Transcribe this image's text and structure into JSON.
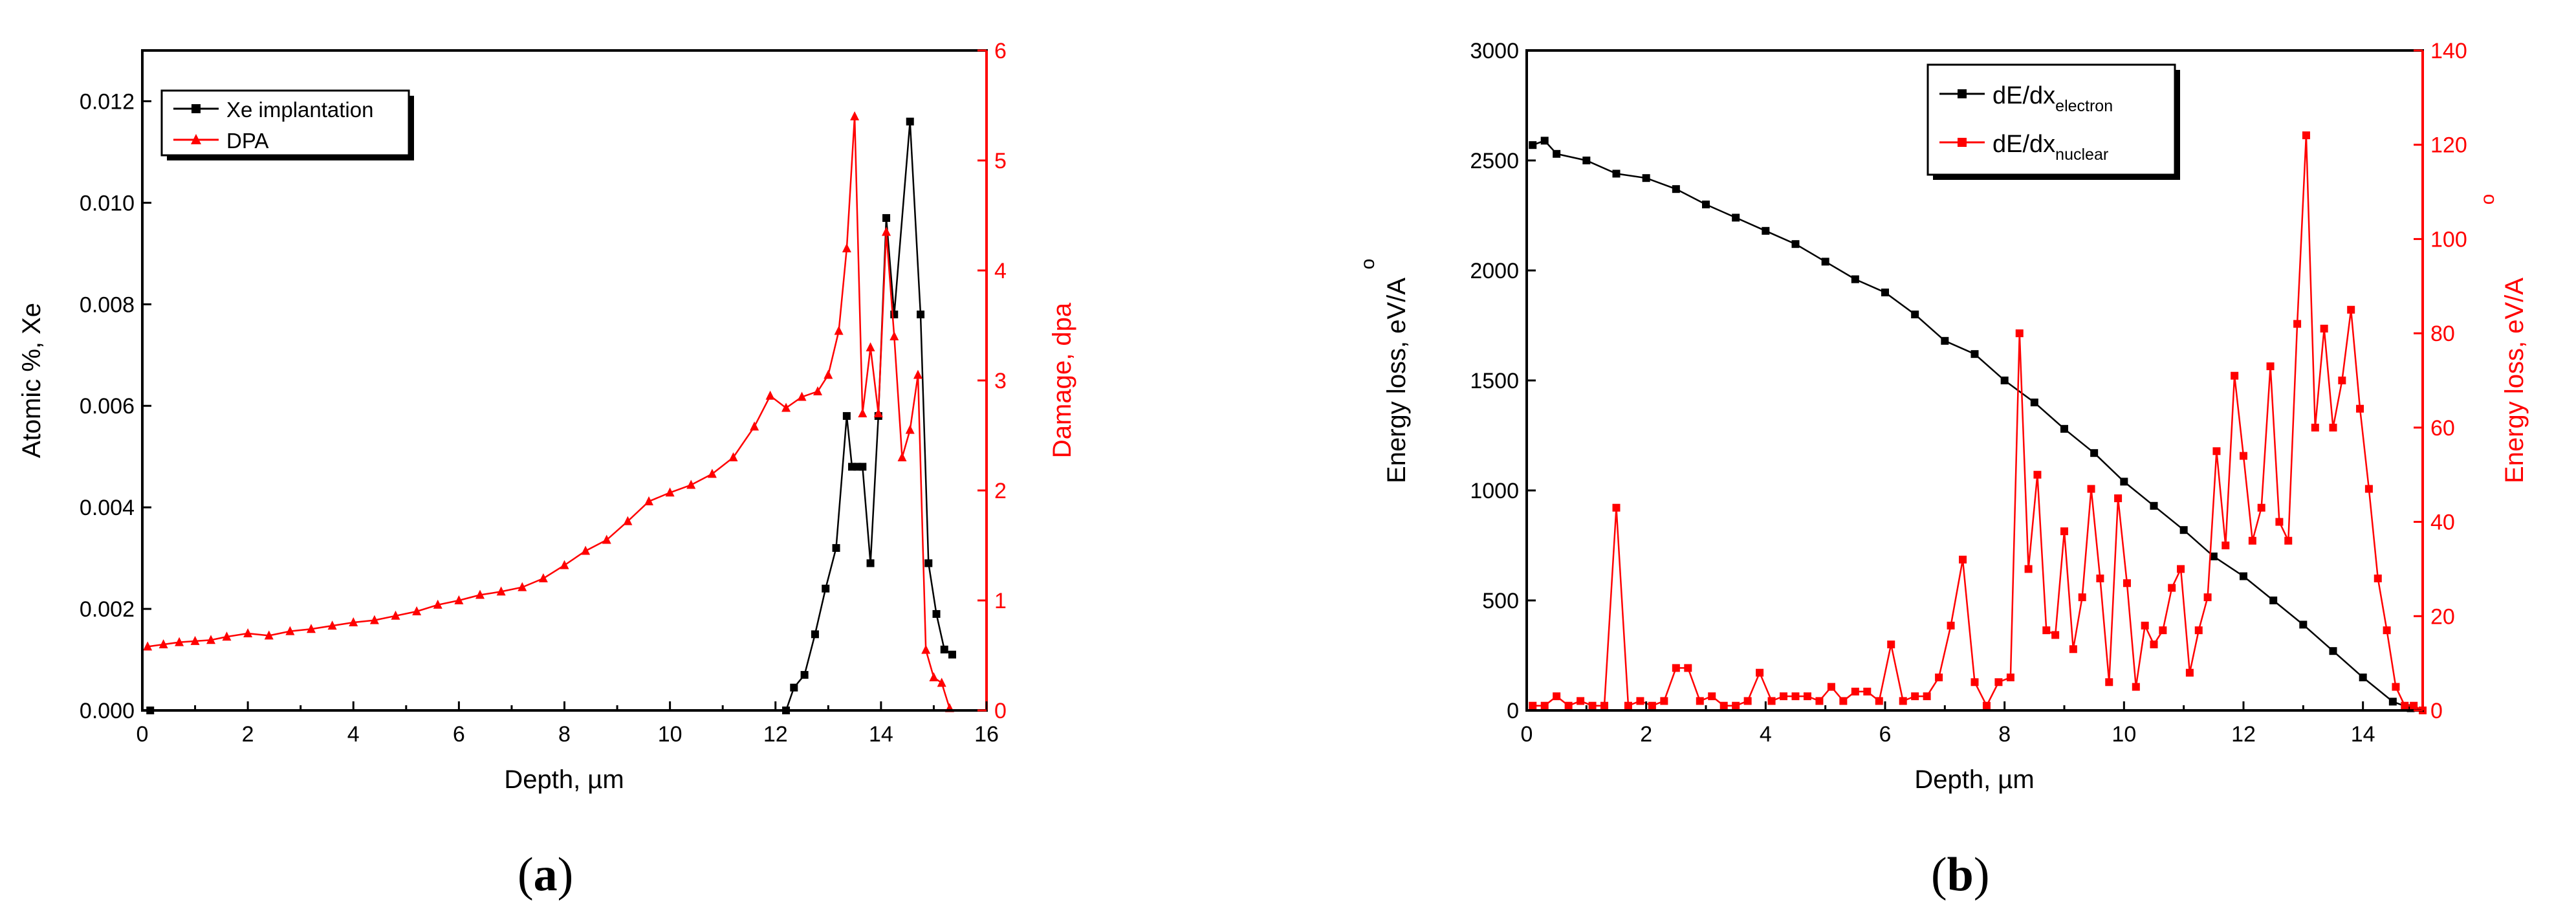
{
  "figure": {
    "captions": [
      "(",
      "a",
      ")",
      "(",
      "b",
      ")"
    ]
  },
  "chart_data": [
    {
      "type": "line",
      "panel": "a",
      "title": "",
      "xlabel": "Depth, µm",
      "ylabel": "Atomic %, Xe",
      "y2label": "Damage, dpa",
      "xlim": [
        0,
        16
      ],
      "ylim": [
        0,
        0.013
      ],
      "y2lim": [
        0,
        6
      ],
      "xticks": [
        "0",
        "2",
        "4",
        "6",
        "8",
        "10",
        "12",
        "14",
        "16"
      ],
      "yticks": [
        "0.000",
        "0.002",
        "0.004",
        "0.006",
        "0.008",
        "0.010",
        "0.012"
      ],
      "y2ticks": [
        "0",
        "1",
        "2",
        "3",
        "4",
        "5",
        "6"
      ],
      "legend": {
        "placement": "top-left",
        "entries": [
          "Xe implantation",
          "DPA"
        ]
      },
      "colors": {
        "axis_left": "#000000",
        "axis_right": "#ff0000"
      },
      "series": [
        {
          "name": "Xe implantation",
          "axis": "left",
          "color": "#000000",
          "marker": "square",
          "x": [
            0.15,
            12.2,
            12.35,
            12.55,
            12.75,
            12.95,
            13.15,
            13.35,
            13.45,
            13.55,
            13.65,
            13.8,
            13.95,
            14.1,
            14.25,
            14.55,
            14.75,
            14.9,
            15.05,
            15.2,
            15.35
          ],
          "y": [
            0.0,
            0.0,
            0.00045,
            0.0007,
            0.0015,
            0.0024,
            0.0032,
            0.0058,
            0.0048,
            0.0048,
            0.0048,
            0.0029,
            0.0058,
            0.0097,
            0.0078,
            0.0116,
            0.0078,
            0.0029,
            0.0019,
            0.0012,
            0.0011
          ]
        },
        {
          "name": "DPA",
          "axis": "right",
          "color": "#ff0000",
          "marker": "triangle",
          "x": [
            0.1,
            0.4,
            0.7,
            1.0,
            1.3,
            1.6,
            2.0,
            2.4,
            2.8,
            3.2,
            3.6,
            4.0,
            4.4,
            4.8,
            5.2,
            5.6,
            6.0,
            6.4,
            6.8,
            7.2,
            7.6,
            8.0,
            8.4,
            8.8,
            9.2,
            9.6,
            10.0,
            10.4,
            10.8,
            11.2,
            11.6,
            11.9,
            12.2,
            12.5,
            12.8,
            13.0,
            13.2,
            13.35,
            13.5,
            13.65,
            13.8,
            13.95,
            14.1,
            14.25,
            14.4,
            14.55,
            14.7,
            14.85,
            15.0,
            15.15,
            15.3
          ],
          "y": [
            0.58,
            0.6,
            0.62,
            0.63,
            0.64,
            0.67,
            0.7,
            0.68,
            0.72,
            0.74,
            0.77,
            0.8,
            0.82,
            0.86,
            0.9,
            0.96,
            1.0,
            1.05,
            1.08,
            1.12,
            1.2,
            1.32,
            1.45,
            1.55,
            1.72,
            1.9,
            1.98,
            2.05,
            2.15,
            2.3,
            2.58,
            2.86,
            2.75,
            2.85,
            2.9,
            3.05,
            3.45,
            4.2,
            5.4,
            2.7,
            3.3,
            2.7,
            4.35,
            3.4,
            2.3,
            2.55,
            3.05,
            0.55,
            0.3,
            0.25,
            0.02
          ]
        }
      ]
    },
    {
      "type": "line",
      "panel": "b",
      "title": "",
      "xlabel": "Depth, µm",
      "ylabel": "Energy loss, eV/A",
      "y2label": "Energy loss, eV/A",
      "angstrom_ring": "o",
      "xlim": [
        0,
        15
      ],
      "ylim": [
        0,
        3000
      ],
      "y2lim": [
        0,
        140
      ],
      "xticks": [
        "0",
        "2",
        "4",
        "6",
        "8",
        "10",
        "12",
        "14"
      ],
      "yticks": [
        "0",
        "500",
        "1000",
        "1500",
        "2000",
        "2500",
        "3000"
      ],
      "y2ticks": [
        "0",
        "20",
        "40",
        "60",
        "80",
        "100",
        "120",
        "140"
      ],
      "legend": {
        "placement": "top-center",
        "entries": [
          {
            "main": "dE/dx",
            "sub": "electron"
          },
          {
            "main": "dE/dx",
            "sub": "nuclear"
          }
        ]
      },
      "colors": {
        "axis_left": "#000000",
        "axis_right": "#ff0000"
      },
      "series": [
        {
          "name": "dE/dx electron",
          "axis": "left",
          "color": "#000000",
          "marker": "square",
          "x": [
            0.1,
            0.3,
            0.5,
            1.0,
            1.5,
            2.0,
            2.5,
            3.0,
            3.5,
            4.0,
            4.5,
            5.0,
            5.5,
            6.0,
            6.5,
            7.0,
            7.5,
            8.0,
            8.5,
            9.0,
            9.5,
            10.0,
            10.5,
            11.0,
            11.5,
            12.0,
            12.5,
            13.0,
            13.5,
            14.0,
            14.5,
            14.8,
            15.0
          ],
          "y": [
            2570,
            2590,
            2530,
            2500,
            2440,
            2420,
            2370,
            2300,
            2240,
            2180,
            2120,
            2040,
            1960,
            1900,
            1800,
            1680,
            1620,
            1500,
            1400,
            1280,
            1170,
            1040,
            930,
            820,
            700,
            610,
            500,
            390,
            270,
            150,
            40,
            10,
            0
          ]
        },
        {
          "name": "dE/dx nuclear",
          "axis": "right",
          "color": "#ff0000",
          "marker": "square",
          "x": [
            0.1,
            0.3,
            0.5,
            0.7,
            0.9,
            1.1,
            1.3,
            1.5,
            1.7,
            1.9,
            2.1,
            2.3,
            2.5,
            2.7,
            2.9,
            3.1,
            3.3,
            3.5,
            3.7,
            3.9,
            4.1,
            4.3,
            4.5,
            4.7,
            4.9,
            5.1,
            5.3,
            5.5,
            5.7,
            5.9,
            6.1,
            6.3,
            6.5,
            6.7,
            6.9,
            7.1,
            7.3,
            7.5,
            7.7,
            7.9,
            8.1,
            8.25,
            8.4,
            8.55,
            8.7,
            8.85,
            9.0,
            9.15,
            9.3,
            9.45,
            9.6,
            9.75,
            9.9,
            10.05,
            10.2,
            10.35,
            10.5,
            10.65,
            10.8,
            10.95,
            11.1,
            11.25,
            11.4,
            11.55,
            11.7,
            11.85,
            12.0,
            12.15,
            12.3,
            12.45,
            12.6,
            12.75,
            12.9,
            13.05,
            13.2,
            13.35,
            13.5,
            13.65,
            13.8,
            13.95,
            14.1,
            14.25,
            14.4,
            14.55,
            14.7,
            14.85,
            15.0
          ],
          "y": [
            1,
            1,
            3,
            1,
            2,
            1,
            1,
            43,
            1,
            2,
            1,
            2,
            9,
            9,
            2,
            3,
            1,
            1,
            2,
            8,
            2,
            3,
            3,
            3,
            2,
            5,
            2,
            4,
            4,
            2,
            14,
            2,
            3,
            3,
            7,
            18,
            32,
            6,
            1,
            6,
            7,
            80,
            30,
            50,
            17,
            16,
            38,
            13,
            24,
            47,
            28,
            6,
            45,
            27,
            5,
            18,
            14,
            17,
            26,
            30,
            8,
            17,
            24,
            55,
            35,
            71,
            54,
            36,
            43,
            73,
            40,
            36,
            82,
            122,
            60,
            81,
            60,
            70,
            85,
            64,
            47,
            28,
            17,
            5,
            1,
            1,
            0
          ]
        }
      ]
    }
  ]
}
